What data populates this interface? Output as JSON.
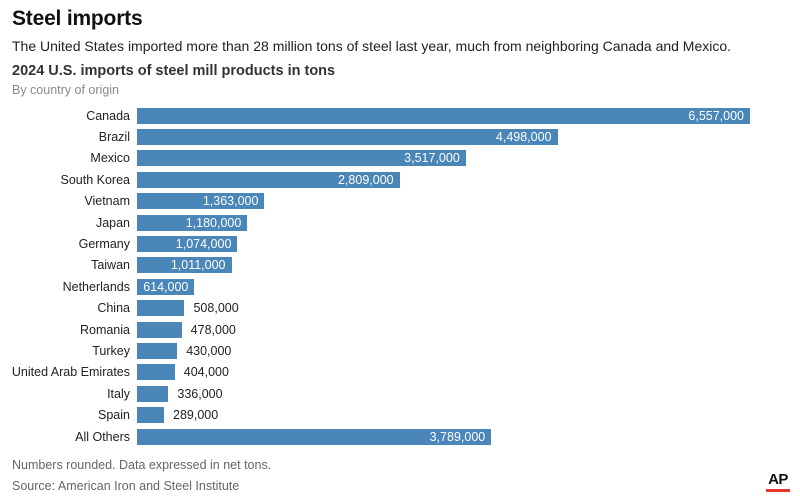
{
  "header": {
    "title": "Steel imports",
    "subtitle": "The United States imported more than 28 million tons of steel last year, much from neighboring Canada and Mexico."
  },
  "chart": {
    "title": "2024 U.S. imports of steel mill products in tons",
    "subtitle": "By country of origin"
  },
  "chart_data": {
    "type": "bar",
    "orientation": "horizontal",
    "title": "2024 U.S. imports of steel mill products in tons",
    "subtitle": "By country of origin",
    "xlabel": "",
    "ylabel": "",
    "grid": false,
    "legend": false,
    "xlim": [
      0,
      6557000
    ],
    "bar_color": "#4A86B8",
    "value_text_inside_color": "#ffffff",
    "value_text_outside_color": "#222222",
    "categories": [
      "Canada",
      "Brazil",
      "Mexico",
      "South Korea",
      "Vietnam",
      "Japan",
      "Germany",
      "Taiwan",
      "Netherlands",
      "China",
      "Romania",
      "Turkey",
      "United Arab Emirates",
      "Italy",
      "Spain",
      "All Others"
    ],
    "values": [
      6557000,
      4498000,
      3517000,
      2809000,
      1363000,
      1180000,
      1074000,
      1011000,
      614000,
      508000,
      478000,
      430000,
      404000,
      336000,
      289000,
      3789000
    ],
    "value_labels": [
      "6,557,000",
      "4,498,000",
      "3,517,000",
      "2,809,000",
      "1,363,000",
      "1,180,000",
      "1,074,000",
      "1,011,000",
      "614,000",
      "508,000",
      "478,000",
      "430,000",
      "404,000",
      "336,000",
      "289,000",
      "3,789,000"
    ]
  },
  "footer": {
    "note": "Numbers rounded. Data expressed in net tons.",
    "source": "Source: American Iron and Steel Institute",
    "logo": "AP",
    "logo_underline_color": "#e8352c"
  }
}
